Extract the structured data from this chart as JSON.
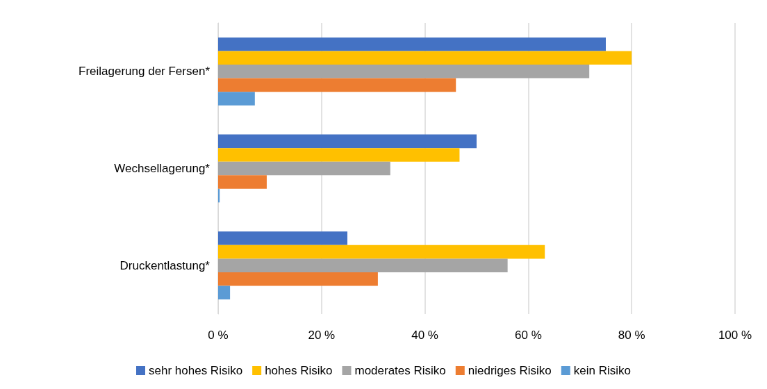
{
  "chart_data": {
    "type": "bar",
    "orientation": "horizontal",
    "categories": [
      "Freilagerung der Fersen*",
      "Wechsellagerung*",
      "Druckentlastung*"
    ],
    "series": [
      {
        "name": "sehr hohes Risiko",
        "color": "#4472c4",
        "values": [
          75,
          50,
          25
        ]
      },
      {
        "name": "hohes Risiko",
        "color": "#ffc000",
        "values": [
          80,
          46.7,
          63.2
        ]
      },
      {
        "name": "moderates Risiko",
        "color": "#a5a5a5",
        "values": [
          71.8,
          33.3,
          56
        ]
      },
      {
        "name": "niedriges Risiko",
        "color": "#ed7d31",
        "values": [
          46,
          9.4,
          30.9
        ]
      },
      {
        "name": "kein Risiko",
        "color": "#5b9bd5",
        "values": [
          7.1,
          0.3,
          2.3
        ]
      }
    ],
    "xlim": [
      0,
      100
    ],
    "xticks": [
      {
        "value": 0,
        "label": "0 %"
      },
      {
        "value": 20,
        "label": "20 %"
      },
      {
        "value": 40,
        "label": "40 %"
      },
      {
        "value": 60,
        "label": "60 %"
      },
      {
        "value": 80,
        "label": "80 %"
      },
      {
        "value": 100,
        "label": "100 %"
      }
    ],
    "grid": "x",
    "legend": "bottom"
  }
}
